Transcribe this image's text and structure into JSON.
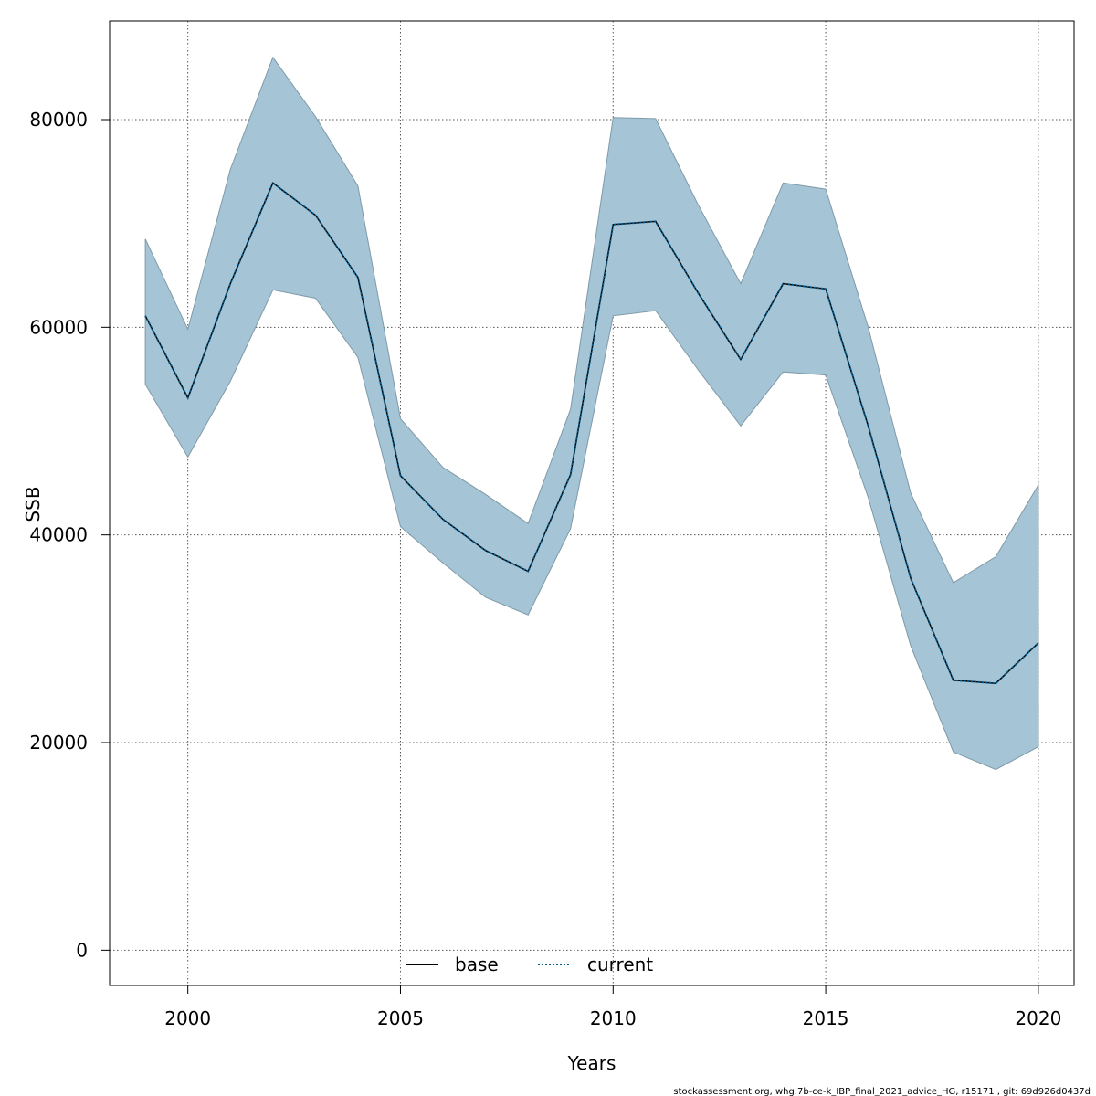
{
  "chart_data": {
    "type": "area",
    "xlabel": "Years",
    "ylabel": "SSB",
    "xlim": [
      1998.16,
      2020.84
    ],
    "ylim": [
      -3400,
      89500
    ],
    "x_ticks": [
      2000,
      2005,
      2010,
      2015,
      2020
    ],
    "y_ticks": [
      0,
      20000,
      40000,
      60000,
      80000
    ],
    "grid": true,
    "legend_position": "bottom-center",
    "x": [
      1999,
      2000,
      2001,
      2002,
      2003,
      2004,
      2005,
      2006,
      2007,
      2008,
      2009,
      2010,
      2011,
      2012,
      2013,
      2014,
      2015,
      2016,
      2017,
      2018,
      2019,
      2020
    ],
    "band": {
      "color": "#a5c4d5",
      "upper": [
        68500,
        59800,
        75200,
        86000,
        80300,
        73600,
        51200,
        46500,
        43900,
        41100,
        52100,
        80200,
        80100,
        71800,
        64200,
        73900,
        73300,
        60000,
        44000,
        35400,
        37900,
        44800
      ],
      "lower": [
        54500,
        47500,
        54800,
        63600,
        62800,
        57100,
        40800,
        37300,
        34000,
        32300,
        40600,
        61100,
        61600,
        55900,
        50500,
        55700,
        55400,
        43600,
        29300,
        19100,
        17400,
        19600
      ]
    },
    "series": [
      {
        "name": "base",
        "color": "#000000",
        "style": "solid",
        "values": [
          61100,
          53200,
          64200,
          73900,
          70800,
          64800,
          45700,
          41500,
          38500,
          36500,
          45800,
          69900,
          70200,
          63300,
          56900,
          64200,
          63700,
          50500,
          35800,
          26000,
          25700,
          29600
        ]
      },
      {
        "name": "current",
        "color": "#005a8c",
        "style": "dotted",
        "values": [
          61100,
          53200,
          64200,
          73900,
          70800,
          64800,
          45700,
          41500,
          38500,
          36500,
          45800,
          69900,
          70200,
          63300,
          56900,
          64200,
          63700,
          50500,
          35800,
          26000,
          25700,
          29600
        ]
      }
    ]
  },
  "footer": "stockassessment.org, whg.7b-ce-k_IBP_final_2021_advice_HG, r15171 , git: 69d926d0437d"
}
